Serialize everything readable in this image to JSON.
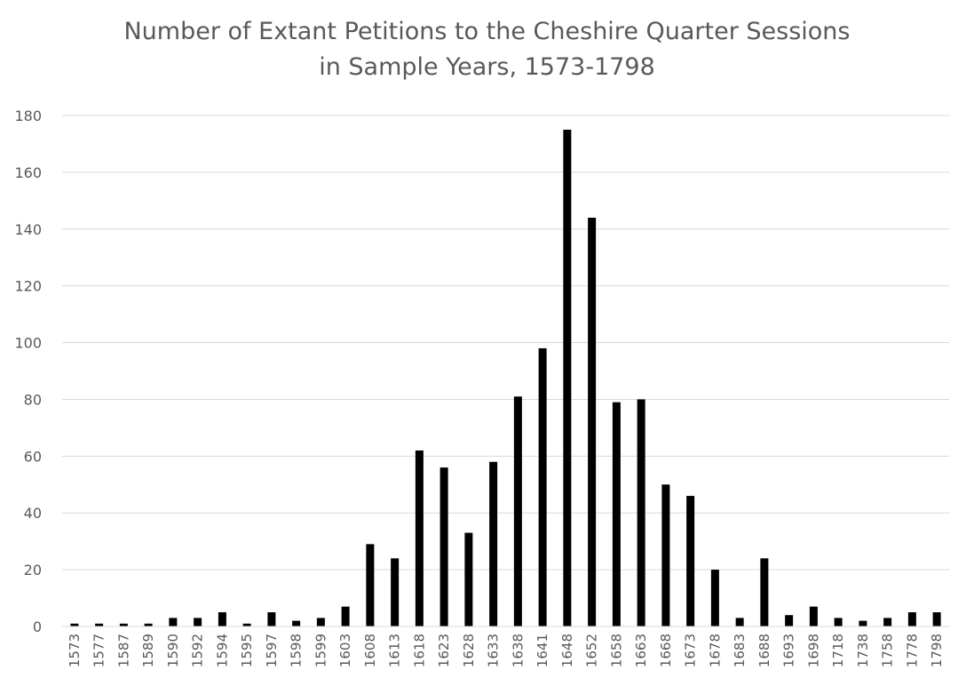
{
  "chart_data": {
    "type": "bar",
    "title": "Number of Extant Petitions to the Cheshire Quarter Sessions",
    "subtitle": "in Sample Years, 1573-1798",
    "xlabel": "",
    "ylabel": "",
    "ylim": [
      0,
      180
    ],
    "yticks": [
      "0",
      "20",
      "40",
      "60",
      "80",
      "100",
      "120",
      "140",
      "160",
      "180"
    ],
    "grid": true,
    "legend": "none",
    "bar_color": "#000000",
    "grid_color": "#d9d9d9",
    "categories": [
      "1573",
      "1577",
      "1587",
      "1589",
      "1590",
      "1592",
      "1594",
      "1595",
      "1597",
      "1598",
      "1599",
      "1603",
      "1608",
      "1613",
      "1618",
      "1623",
      "1628",
      "1633",
      "1638",
      "1641",
      "1648",
      "1652",
      "1658",
      "1663",
      "1668",
      "1673",
      "1678",
      "1683",
      "1688",
      "1693",
      "1698",
      "1718",
      "1738",
      "1758",
      "1778",
      "1798"
    ],
    "values": [
      1,
      1,
      1,
      1,
      3,
      3,
      5,
      1,
      5,
      2,
      3,
      7,
      29,
      24,
      62,
      56,
      33,
      58,
      81,
      98,
      175,
      144,
      79,
      80,
      50,
      46,
      20,
      3,
      24,
      4,
      7,
      3,
      2,
      3,
      5,
      5
    ]
  }
}
